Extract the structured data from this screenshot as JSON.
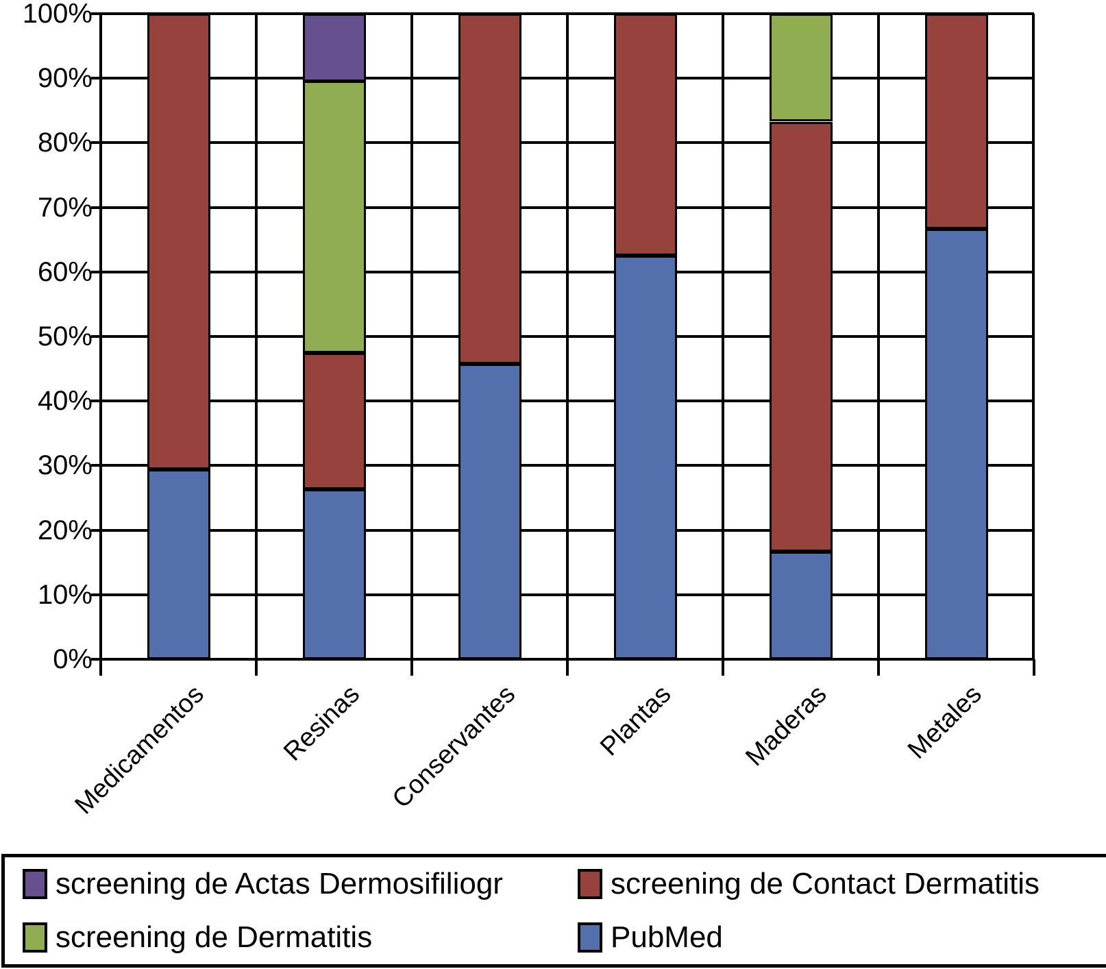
{
  "chart_data": {
    "type": "bar",
    "stacked": true,
    "percent_scale": true,
    "title": "",
    "xlabel": "",
    "ylabel": "",
    "ylim": [
      0,
      100
    ],
    "grid": true,
    "legend_position": "bottom",
    "categories": [
      "Medicamentos",
      "Resinas",
      "Conservantes",
      "Plantas",
      "Maderas",
      "Metales"
    ],
    "y_ticks": [
      "100%",
      "90%",
      "80%",
      "70%",
      "60%",
      "50%",
      "40%",
      "30%",
      "20%",
      "10%",
      "0%"
    ],
    "series": [
      {
        "name": "PubMed",
        "color": "#5470AC",
        "values": [
          29.4,
          26.3,
          45.8,
          62.5,
          16.7,
          66.7
        ]
      },
      {
        "name": "screening de Contact Dermatitis",
        "color": "#97423D",
        "values": [
          70.6,
          21.1,
          54.2,
          37.5,
          66.6,
          33.3
        ]
      },
      {
        "name": "screening de Dermatitis",
        "color": "#90AD51",
        "values": [
          0,
          42.1,
          0,
          0,
          16.7,
          0
        ]
      },
      {
        "name": "screening de Actas Dermosifiliogr",
        "color": "#66508F",
        "values": [
          0,
          10.5,
          0,
          0,
          0,
          0
        ]
      }
    ]
  },
  "legend": {
    "items": [
      {
        "label": "screening de Actas Dermosifiliogr",
        "color": "#66508F"
      },
      {
        "label": "screening de Contact Dermatitis",
        "color": "#97423D"
      },
      {
        "label": "screening de Dermatitis",
        "color": "#90AD51"
      },
      {
        "label": "PubMed",
        "color": "#5470AC"
      }
    ]
  }
}
